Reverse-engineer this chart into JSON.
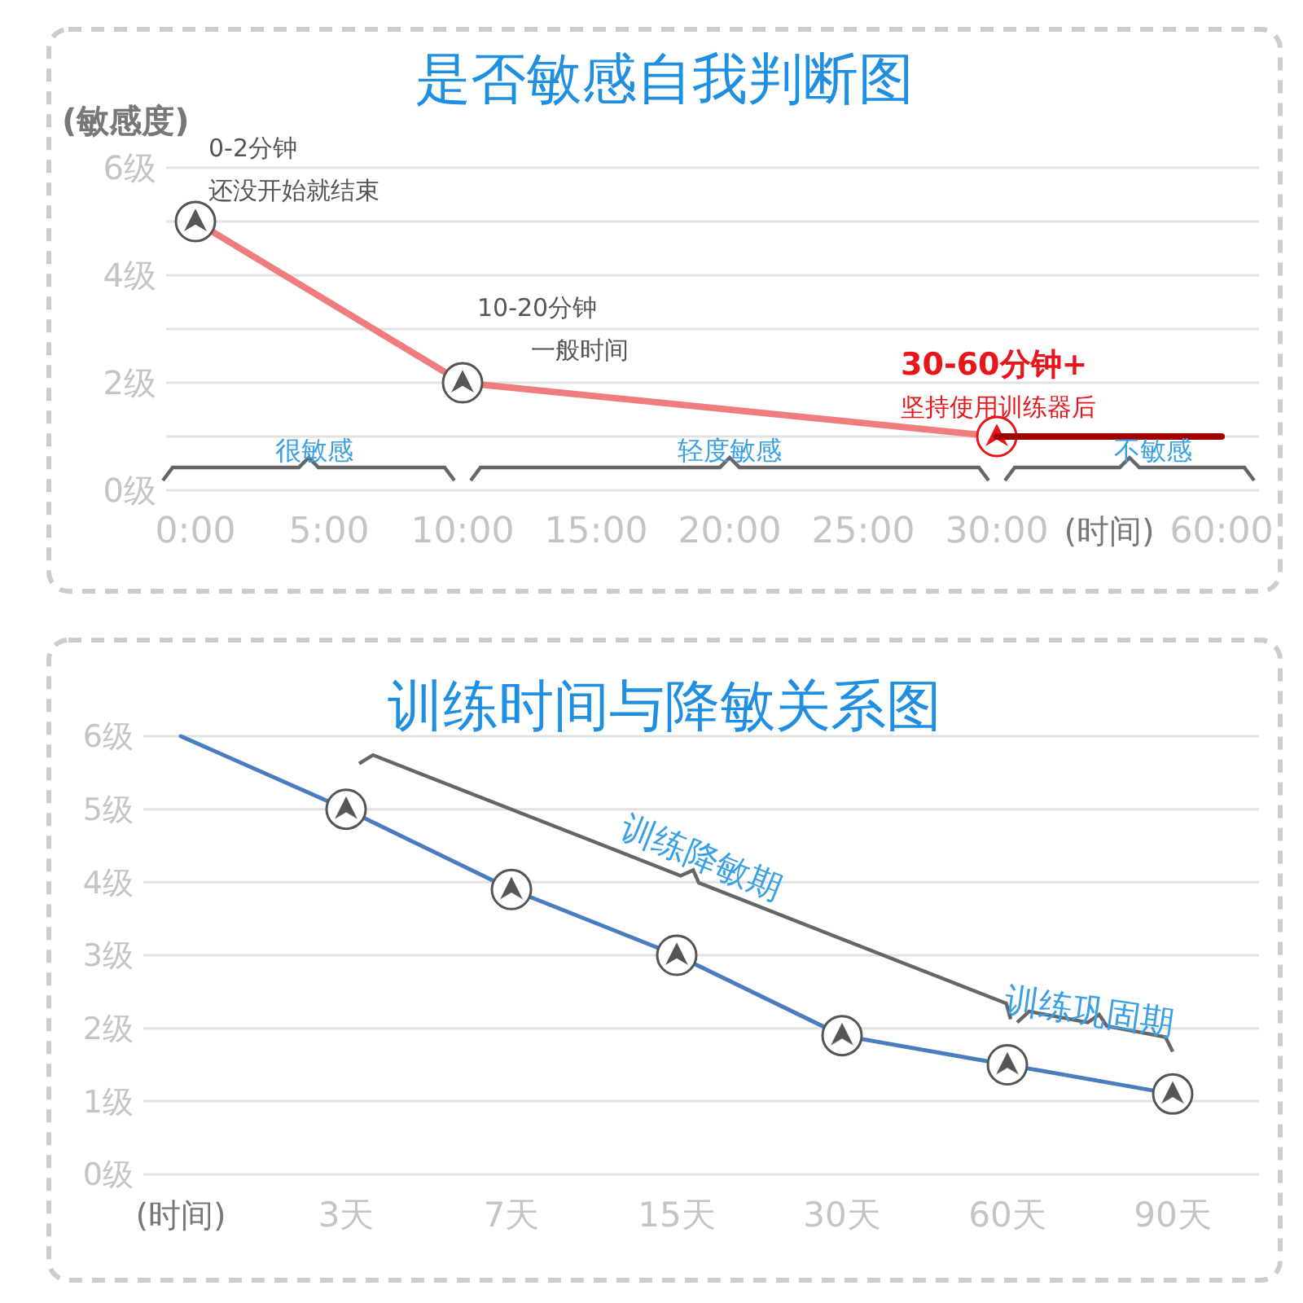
{
  "chart_data": [
    {
      "type": "line",
      "title": "是否敏感自我判断图",
      "ylabel": "(敏感度)",
      "xlabel": "(时间)",
      "categories": [
        "0:00",
        "5:00",
        "10:00",
        "15:00",
        "20:00",
        "25:00",
        "30:00",
        "60:00"
      ],
      "series": [
        {
          "color": "#f07d7d",
          "values": [
            5,
            null,
            2,
            null,
            null,
            null,
            1,
            null
          ],
          "colors": [
            "#555555",
            null,
            "#555555",
            null,
            null,
            null,
            "#e8161b",
            null
          ],
          "marker": "circle"
        },
        {
          "color": "#a00000",
          "values": [
            null,
            null,
            null,
            null,
            null,
            null,
            1,
            1
          ]
        }
      ],
      "ylim": [
        0,
        6
      ],
      "yticks": [
        {
          "value": 0,
          "label": "0级"
        },
        {
          "value": 1,
          "label": null
        },
        {
          "value": 2,
          "label": "2级"
        },
        {
          "value": 3,
          "label": null
        },
        {
          "value": 4,
          "label": "4级"
        },
        {
          "value": 5,
          "label": null
        },
        {
          "value": 6,
          "label": "6级"
        }
      ],
      "grid": "y",
      "annotations": [
        "0-2分钟",
        "还没开始就结束",
        "10-20分钟",
        "一般时间",
        "30-60分钟+",
        "坚持使用训练器后",
        "很敏感",
        "轻度敏感",
        "不敏感"
      ]
    },
    {
      "type": "line",
      "title": "训练时间与降敏关系图",
      "xlabel": "(时间)",
      "categories": [
        null,
        "3天",
        "7天",
        "15天",
        "30天",
        "60天",
        "90天"
      ],
      "series": [
        {
          "color": "#4a7cc0",
          "values": [
            6,
            5,
            3.9,
            3,
            1.9,
            1.5,
            1.1
          ],
          "colors": [
            null,
            "#555555",
            "#555555",
            "#555555",
            "#555555",
            "#555555",
            "#555555"
          ],
          "marker": "circle"
        }
      ],
      "ylim": [
        0,
        6
      ],
      "yticks": [
        {
          "value": 0,
          "label": "0级"
        },
        {
          "value": 1,
          "label": "1级"
        },
        {
          "value": 2,
          "label": "2级"
        },
        {
          "value": 3,
          "label": "3级"
        },
        {
          "value": 4,
          "label": "4级"
        },
        {
          "value": 5,
          "label": "5级"
        },
        {
          "value": 6,
          "label": "6级"
        }
      ],
      "grid": "y",
      "annotations": [
        "训练降敏期",
        "训练巩固期"
      ]
    }
  ]
}
